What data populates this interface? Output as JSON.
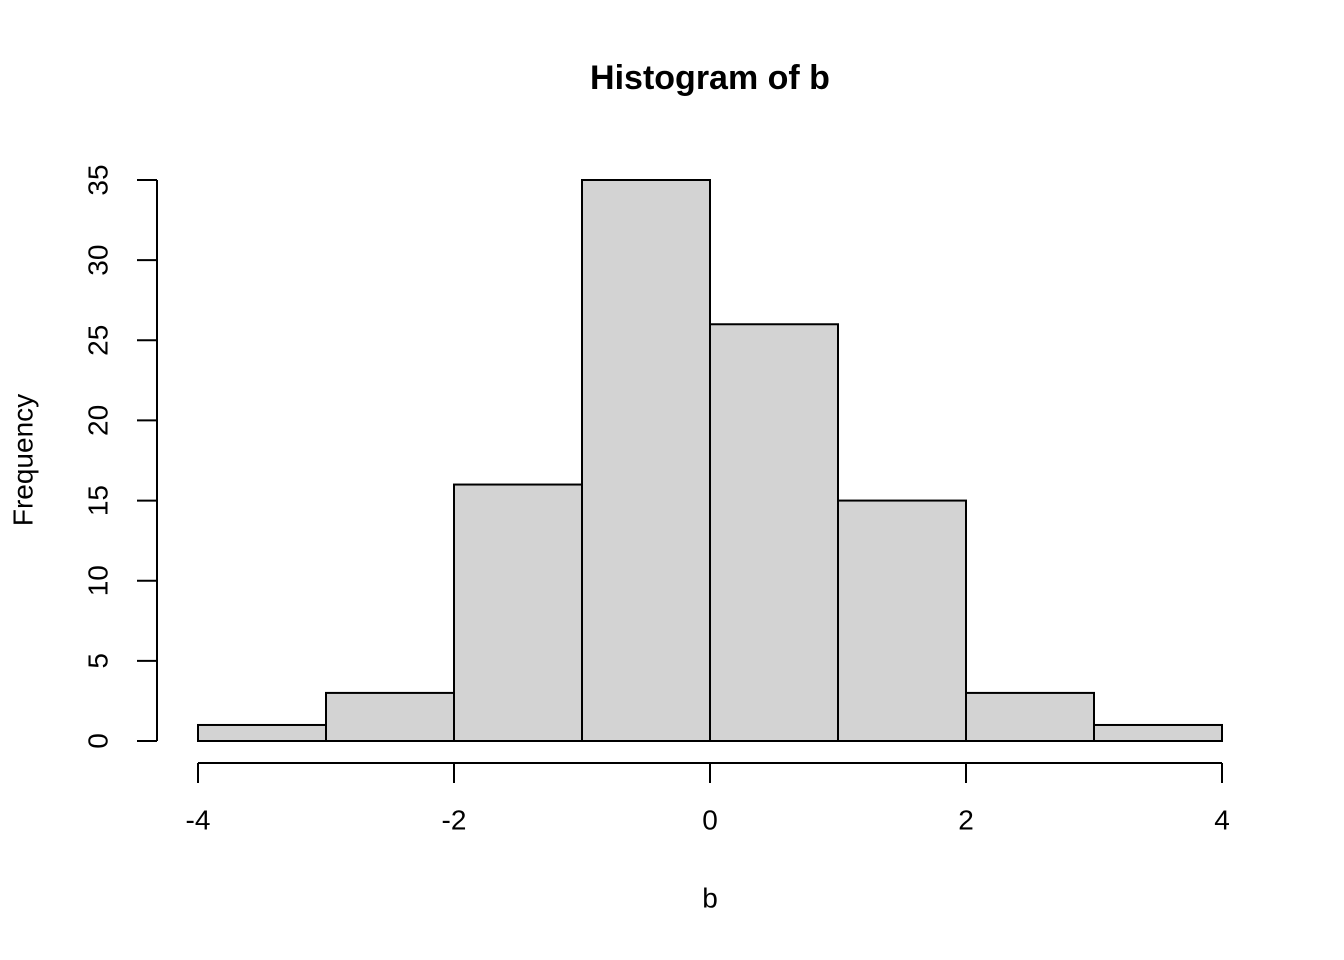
{
  "chart_data": {
    "type": "histogram",
    "title": "Histogram of b",
    "xlabel": "b",
    "ylabel": "Frequency",
    "bins": [
      -4,
      -3,
      -2,
      -1,
      0,
      1,
      2,
      3,
      4
    ],
    "values": [
      1,
      3,
      16,
      35,
      26,
      15,
      3,
      1
    ],
    "color": "#d3d3d3",
    "xlim": [
      -4,
      4
    ],
    "xticks": [
      -4,
      -2,
      0,
      2,
      4
    ],
    "ylim": [
      0,
      35
    ],
    "yticks": [
      0,
      5,
      10,
      15,
      20,
      25,
      30,
      35
    ]
  }
}
